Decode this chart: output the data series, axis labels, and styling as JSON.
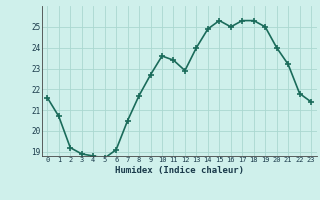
{
  "x": [
    0,
    1,
    2,
    3,
    4,
    5,
    6,
    7,
    8,
    9,
    10,
    11,
    12,
    13,
    14,
    15,
    16,
    17,
    18,
    19,
    20,
    21,
    22,
    23
  ],
  "y": [
    21.6,
    20.7,
    19.2,
    18.9,
    18.8,
    18.7,
    19.1,
    20.5,
    21.7,
    22.7,
    23.6,
    23.4,
    22.9,
    24.0,
    24.9,
    25.3,
    25.0,
    25.3,
    25.3,
    25.0,
    24.0,
    23.2,
    21.8,
    21.4
  ],
  "line_color": "#1a6b5a",
  "marker": "+",
  "marker_size": 4,
  "marker_linewidth": 1.2,
  "bg_color": "#cff0eb",
  "grid_color": "#aad8d0",
  "xlabel": "Humidex (Indice chaleur)",
  "ylim_min": 18.8,
  "ylim_max": 26.0,
  "yticks": [
    19,
    20,
    21,
    22,
    23,
    24,
    25
  ],
  "xlim_min": -0.5,
  "xlim_max": 23.5,
  "xtick_labels": [
    "0",
    "1",
    "2",
    "3",
    "4",
    "5",
    "6",
    "7",
    "8",
    "9",
    "10",
    "11",
    "12",
    "13",
    "14",
    "15",
    "16",
    "17",
    "18",
    "19",
    "20",
    "21",
    "22",
    "23"
  ],
  "font_color": "#1a3a4a",
  "linewidth": 1.2
}
